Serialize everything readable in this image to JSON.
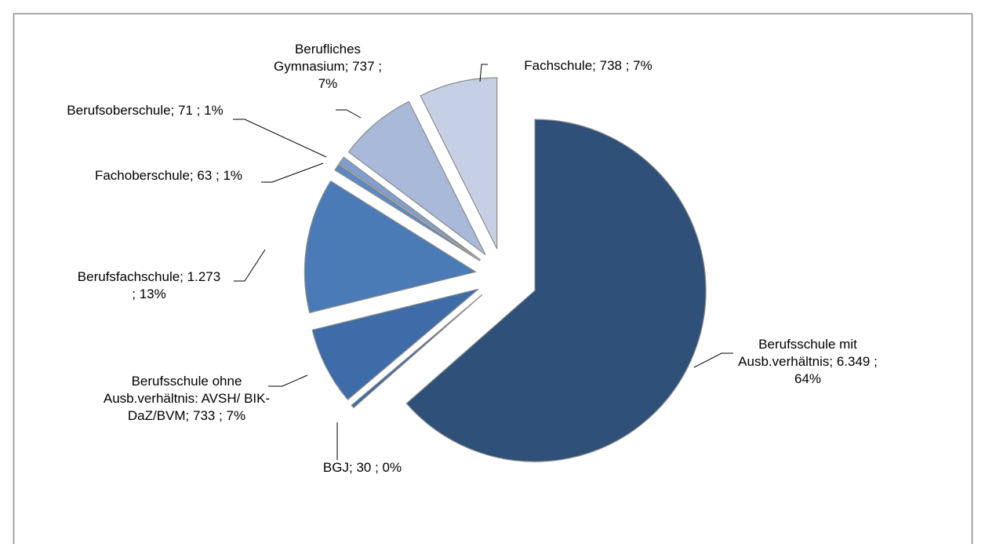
{
  "chart_data": {
    "type": "pie",
    "categories": [
      "Berufsschule mit Ausb.verhältnis;",
      "BGJ;",
      "Berufsschule ohne Ausb.verhältnis: AVSH/ BIK-DaZ/BVM;",
      "Berufsfachschule;",
      "Fachoberschule;",
      "Berufsoberschule;",
      "Berufliches Gymnasium;",
      "Fachschule;"
    ],
    "values": [
      6349,
      30,
      733,
      1273,
      63,
      71,
      737,
      738
    ],
    "value_labels": [
      "6.349 ; 64%",
      "30 ; 0%",
      "733 ; 7%",
      "1.273 ; 13%",
      "63 ; 1%",
      "71 ; 1%",
      "737 ; 7%",
      "738 ; 7%"
    ],
    "colors": [
      "#2f5078",
      "#3a6aa5",
      "#3d6ca8",
      "#4a7bb7",
      "#5d88c3",
      "#809fd0",
      "#a8b9da",
      "#c6d0e4"
    ]
  }
}
